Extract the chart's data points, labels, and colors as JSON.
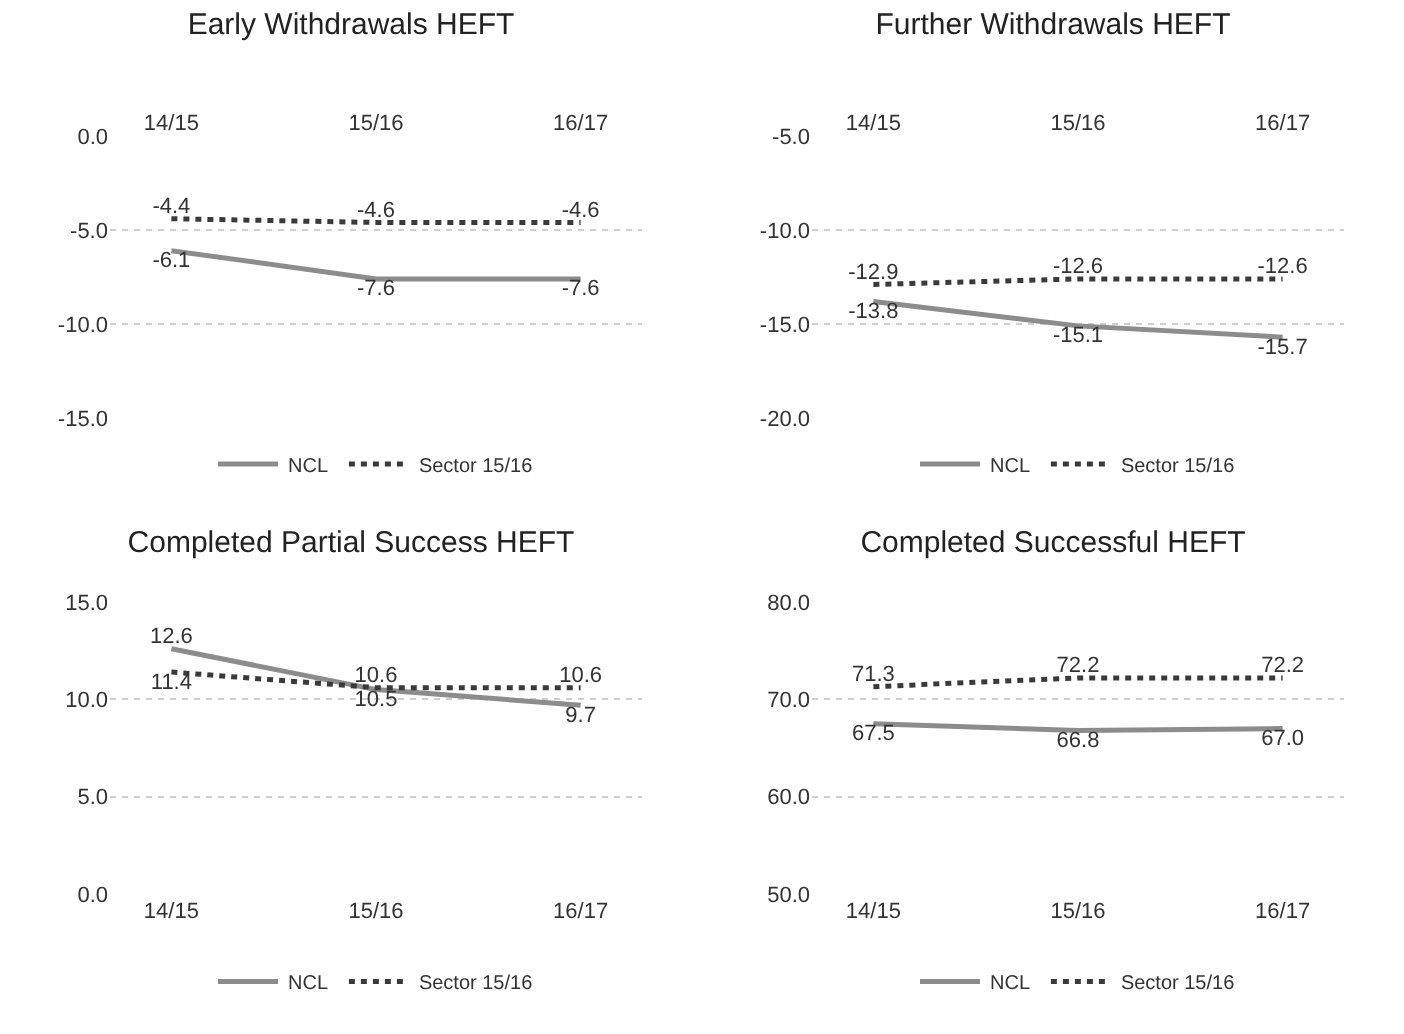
{
  "chart_data": [
    {
      "type": "line",
      "title": "Early Withdrawals HEFT",
      "categories": [
        "14/15",
        "15/16",
        "16/17"
      ],
      "ylim": [
        -15,
        0
      ],
      "yticks": [
        {
          "value": 0,
          "label": "0.0"
        },
        {
          "value": -5,
          "label": "-5.0"
        },
        {
          "value": -10,
          "label": "-10.0"
        },
        {
          "value": -15,
          "label": "-15.0"
        }
      ],
      "grid": "y",
      "legend": "bottom",
      "series": [
        {
          "name": "NCL",
          "color": "#8c8c8c",
          "line_style": "solid",
          "values": [
            -6.1,
            -7.6,
            -7.6
          ],
          "value_labels": [
            "-6.1",
            "-7.6",
            "-7.6"
          ]
        },
        {
          "name": "Sector 15/16",
          "color": "#3a3a3a",
          "line_style": "dotted",
          "values": [
            -4.4,
            -4.6,
            -4.6
          ],
          "value_labels": [
            "-4.4",
            "-4.6",
            "-4.6"
          ]
        }
      ]
    },
    {
      "type": "line",
      "title": "Further Withdrawals HEFT",
      "categories": [
        "14/15",
        "15/16",
        "16/17"
      ],
      "ylim": [
        -20,
        -5
      ],
      "yticks": [
        {
          "value": -5,
          "label": "-5.0"
        },
        {
          "value": -10,
          "label": "-10.0"
        },
        {
          "value": -15,
          "label": "-15.0"
        },
        {
          "value": -20,
          "label": "-20.0"
        }
      ],
      "grid": "y",
      "legend": "bottom",
      "series": [
        {
          "name": "NCL",
          "color": "#8c8c8c",
          "line_style": "solid",
          "values": [
            -13.8,
            -15.1,
            -15.7
          ],
          "value_labels": [
            "-13.8",
            "-15.1",
            "-15.7"
          ]
        },
        {
          "name": "Sector 15/16",
          "color": "#3a3a3a",
          "line_style": "dotted",
          "values": [
            -12.9,
            -12.6,
            -12.6
          ],
          "value_labels": [
            "-12.9",
            "-12.6",
            "-12.6"
          ]
        }
      ]
    },
    {
      "type": "line",
      "title": "Completed Partial Success HEFT",
      "categories": [
        "14/15",
        "15/16",
        "16/17"
      ],
      "ylim": [
        0,
        15
      ],
      "yticks": [
        {
          "value": 0,
          "label": "0.0"
        },
        {
          "value": 5,
          "label": "5.0"
        },
        {
          "value": 10,
          "label": "10.0"
        },
        {
          "value": 15,
          "label": "15.0"
        }
      ],
      "grid": "y",
      "legend": "bottom",
      "series": [
        {
          "name": "NCL",
          "color": "#8c8c8c",
          "line_style": "solid",
          "values": [
            12.6,
            10.5,
            9.7
          ],
          "value_labels": [
            "12.6",
            "10.5",
            "9.7"
          ]
        },
        {
          "name": "Sector 15/16",
          "color": "#3a3a3a",
          "line_style": "dotted",
          "values": [
            11.4,
            10.6,
            10.6
          ],
          "value_labels": [
            "11.4",
            "10.6",
            "10.6"
          ]
        }
      ]
    },
    {
      "type": "line",
      "title": "Completed Successful HEFT",
      "categories": [
        "14/15",
        "15/16",
        "16/17"
      ],
      "ylim": [
        50,
        80
      ],
      "yticks": [
        {
          "value": 50,
          "label": "50.0"
        },
        {
          "value": 60,
          "label": "60.0"
        },
        {
          "value": 70,
          "label": "70.0"
        },
        {
          "value": 80,
          "label": "80.0"
        }
      ],
      "grid": "y",
      "legend": "bottom",
      "series": [
        {
          "name": "NCL",
          "color": "#8c8c8c",
          "line_style": "solid",
          "values": [
            67.5,
            66.8,
            67.0
          ],
          "value_labels": [
            "67.5",
            "66.8",
            "67.0"
          ]
        },
        {
          "name": "Sector 15/16",
          "color": "#3a3a3a",
          "line_style": "dotted",
          "values": [
            71.3,
            72.2,
            72.2
          ],
          "value_labels": [
            "71.3",
            "72.2",
            "72.2"
          ]
        }
      ]
    }
  ]
}
